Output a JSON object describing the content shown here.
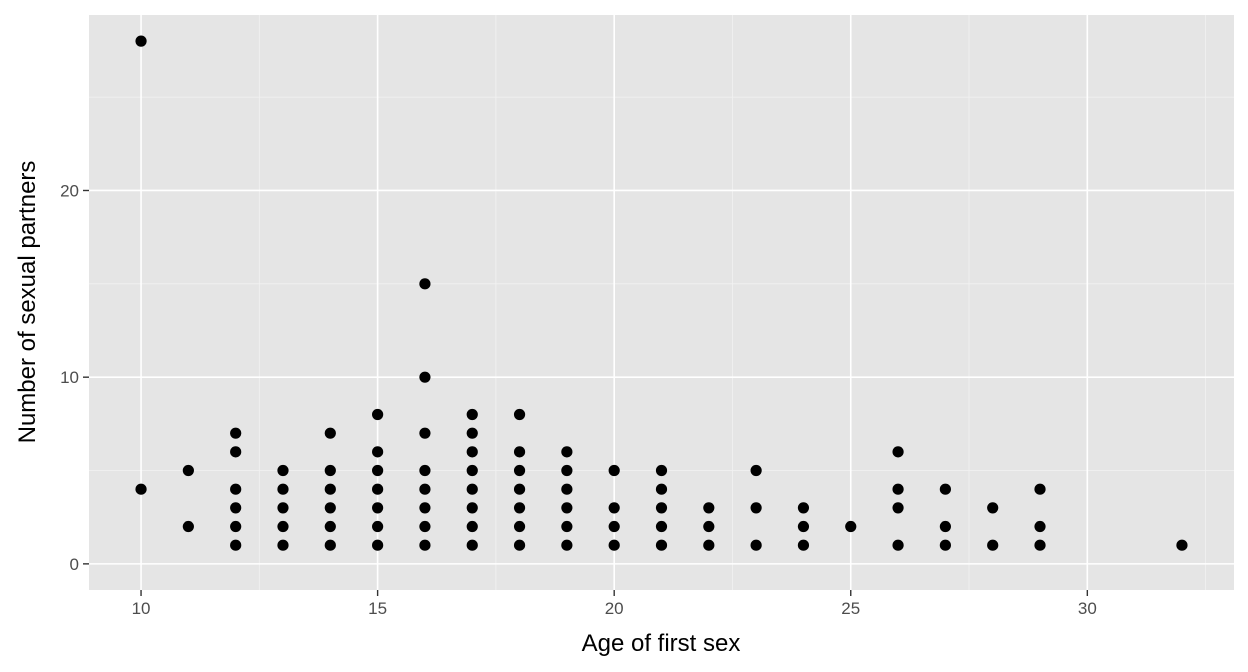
{
  "chart_data": {
    "type": "scatter",
    "title": "",
    "xlabel": "Age of first sex",
    "ylabel": "Number of sexual partners",
    "xlim": [
      8.9,
      33.1
    ],
    "ylim": [
      -1.4,
      29.4
    ],
    "x_ticks": [
      10,
      15,
      20,
      25,
      30
    ],
    "y_ticks": [
      0,
      10,
      20
    ],
    "x_tick_labels": [
      "10",
      "15",
      "20",
      "25",
      "30"
    ],
    "y_tick_labels": [
      "0",
      "10",
      "20"
    ],
    "grid": true,
    "legend": "none",
    "point_color": "#000000",
    "panel_color": "#e5e5e5",
    "points": [
      [
        10,
        28
      ],
      [
        10,
        4
      ],
      [
        11,
        5
      ],
      [
        11,
        2
      ],
      [
        12,
        7
      ],
      [
        12,
        6
      ],
      [
        12,
        4
      ],
      [
        12,
        3
      ],
      [
        12,
        2
      ],
      [
        12,
        1
      ],
      [
        13,
        5
      ],
      [
        13,
        4
      ],
      [
        13,
        3
      ],
      [
        13,
        2
      ],
      [
        13,
        1
      ],
      [
        14,
        7
      ],
      [
        14,
        5
      ],
      [
        14,
        4
      ],
      [
        14,
        3
      ],
      [
        14,
        2
      ],
      [
        14,
        1
      ],
      [
        15,
        8
      ],
      [
        15,
        6
      ],
      [
        15,
        5
      ],
      [
        15,
        4
      ],
      [
        15,
        3
      ],
      [
        15,
        2
      ],
      [
        15,
        1
      ],
      [
        16,
        15
      ],
      [
        16,
        10
      ],
      [
        16,
        7
      ],
      [
        16,
        5
      ],
      [
        16,
        4
      ],
      [
        16,
        3
      ],
      [
        16,
        2
      ],
      [
        16,
        1
      ],
      [
        17,
        8
      ],
      [
        17,
        7
      ],
      [
        17,
        6
      ],
      [
        17,
        5
      ],
      [
        17,
        4
      ],
      [
        17,
        3
      ],
      [
        17,
        2
      ],
      [
        17,
        1
      ],
      [
        18,
        8
      ],
      [
        18,
        6
      ],
      [
        18,
        5
      ],
      [
        18,
        4
      ],
      [
        18,
        3
      ],
      [
        18,
        2
      ],
      [
        18,
        1
      ],
      [
        19,
        6
      ],
      [
        19,
        5
      ],
      [
        19,
        4
      ],
      [
        19,
        3
      ],
      [
        19,
        2
      ],
      [
        19,
        1
      ],
      [
        20,
        5
      ],
      [
        20,
        3
      ],
      [
        20,
        2
      ],
      [
        20,
        1
      ],
      [
        21,
        5
      ],
      [
        21,
        4
      ],
      [
        21,
        3
      ],
      [
        21,
        2
      ],
      [
        21,
        1
      ],
      [
        22,
        3
      ],
      [
        22,
        2
      ],
      [
        22,
        1
      ],
      [
        23,
        5
      ],
      [
        23,
        3
      ],
      [
        23,
        1
      ],
      [
        24,
        3
      ],
      [
        24,
        2
      ],
      [
        24,
        1
      ],
      [
        25,
        2
      ],
      [
        26,
        6
      ],
      [
        26,
        4
      ],
      [
        26,
        3
      ],
      [
        26,
        1
      ],
      [
        27,
        4
      ],
      [
        27,
        2
      ],
      [
        27,
        1
      ],
      [
        28,
        3
      ],
      [
        28,
        1
      ],
      [
        29,
        4
      ],
      [
        29,
        2
      ],
      [
        29,
        1
      ],
      [
        32,
        1
      ]
    ]
  }
}
